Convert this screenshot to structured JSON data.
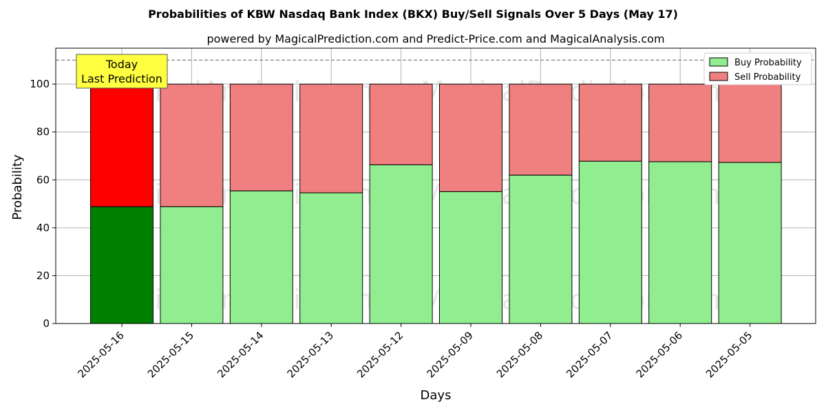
{
  "chart_data": {
    "type": "bar",
    "stacked": true,
    "title": "Probabilities of KBW Nasdaq Bank Index (BKX) Buy/Sell Signals Over 5 Days (May 17)",
    "subtitle": "powered by MagicalPrediction.com and Predict-Price.com and MagicalAnalysis.com",
    "xlabel": "Days",
    "ylabel": "Probability",
    "ylim": [
      0,
      115
    ],
    "yticks": [
      0,
      20,
      40,
      60,
      80,
      100
    ],
    "grid": true,
    "legend_position": "top-right",
    "categories": [
      "2025-05-16",
      "2025-05-15",
      "2025-05-14",
      "2025-05-13",
      "2025-05-12",
      "2025-05-09",
      "2025-05-08",
      "2025-05-07",
      "2025-05-06",
      "2025-05-05"
    ],
    "series": [
      {
        "name": "Buy Probability",
        "values": [
          48.8,
          48.8,
          55.4,
          54.6,
          66.3,
          55.1,
          62.0,
          67.8,
          67.6,
          67.3
        ],
        "color": "#90ee90",
        "highlight_color": "#008000"
      },
      {
        "name": "Sell Probability",
        "values": [
          51.2,
          51.2,
          44.6,
          45.4,
          33.7,
          44.9,
          38.0,
          32.2,
          32.4,
          32.7
        ],
        "color": "#f08080",
        "highlight_color": "#ff0000"
      }
    ],
    "reference_line": {
      "y": 110,
      "style": "dashed",
      "color": "#808080"
    },
    "annotation": {
      "lines": [
        "Today",
        "Last Prediction"
      ],
      "category_index": 0,
      "background": "#ffff40"
    },
    "watermarks": [
      "MagicalAnalysis.com",
      "MagicalPrediction.com"
    ]
  }
}
